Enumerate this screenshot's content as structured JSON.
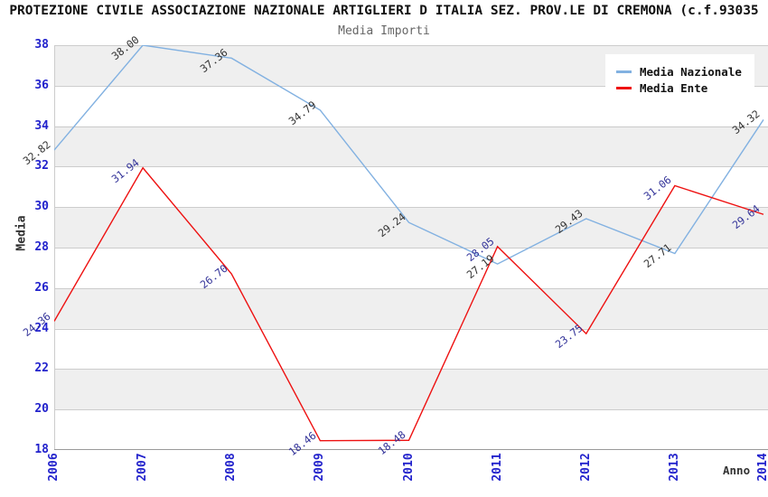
{
  "chart_data": {
    "type": "line",
    "title": "PROTEZIONE CIVILE ASSOCIAZIONE NAZIONALE ARTIGLIERI D ITALIA SEZ. PROV.LE DI CREMONA (c.f.93035",
    "subtitle": "Media Importi",
    "xlabel": "Anno",
    "ylabel": "Media",
    "categories": [
      "2006",
      "2007",
      "2008",
      "2009",
      "2010",
      "2011",
      "2012",
      "2013",
      "2014"
    ],
    "series": [
      {
        "name": "Media Nazionale",
        "color": "#82b1e1",
        "label_color": "#333333",
        "values": [
          32.82,
          38.0,
          37.36,
          34.79,
          29.24,
          27.19,
          29.43,
          27.71,
          34.32
        ]
      },
      {
        "name": "Media Ente",
        "color": "#ee1111",
        "label_color": "#333399",
        "values": [
          24.36,
          31.94,
          26.7,
          18.46,
          18.48,
          28.05,
          23.75,
          31.06,
          29.64
        ]
      }
    ],
    "ylim": [
      18,
      38
    ],
    "ytick_step": 2,
    "grid": "horizontal-bands",
    "legend_position": "top-right",
    "colors": {
      "tick_text": "#2222cc",
      "band_alt": "#efefef",
      "band_base": "#ffffff",
      "gridline": "#cccccc",
      "axis_line": "#999999",
      "title_text": "#111111",
      "subtitle_text": "#666666",
      "axis_title_text": "#333333",
      "legend_bg": "#ffffff"
    }
  }
}
